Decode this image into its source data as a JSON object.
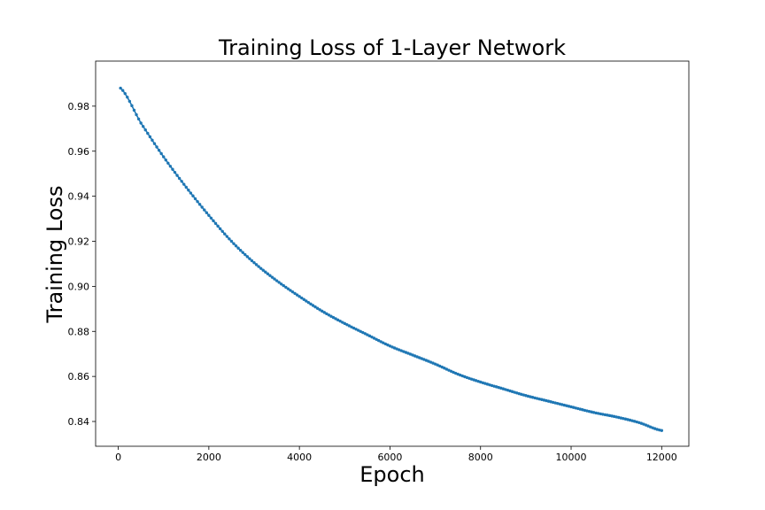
{
  "chart_data": {
    "type": "line",
    "title": "Training Loss of 1-Layer Network",
    "xlabel": "Epoch",
    "ylabel": "Training Loss",
    "xlim": [
      -500,
      12600
    ],
    "ylim": [
      0.829,
      1.0
    ],
    "xticks": [
      0,
      2000,
      4000,
      6000,
      8000,
      10000,
      12000
    ],
    "yticks": [
      0.84,
      0.86,
      0.88,
      0.9,
      0.92,
      0.94,
      0.96,
      0.98
    ],
    "ytick_labels": [
      "0.84",
      "0.86",
      "0.88",
      "0.90",
      "0.92",
      "0.94",
      "0.96",
      "0.98"
    ],
    "grid": false,
    "marker": "dot",
    "colors": {
      "series": "#1f77b4"
    },
    "series": [
      {
        "x": [
          50,
          500,
          1000,
          1500,
          2000,
          2500,
          3000,
          3500,
          4000,
          4500,
          5000,
          5500,
          6000,
          6500,
          7000,
          7500,
          8000,
          8500,
          9000,
          9500,
          10000,
          10500,
          11000,
          11500,
          12000
        ],
        "values": [
          0.988,
          0.9725,
          0.9575,
          0.944,
          0.9315,
          0.92,
          0.9105,
          0.9025,
          0.8955,
          0.889,
          0.8835,
          0.8785,
          0.8735,
          0.8695,
          0.8655,
          0.861,
          0.8575,
          0.8545,
          0.8515,
          0.849,
          0.8465,
          0.844,
          0.842,
          0.8395,
          0.836
        ]
      }
    ]
  }
}
